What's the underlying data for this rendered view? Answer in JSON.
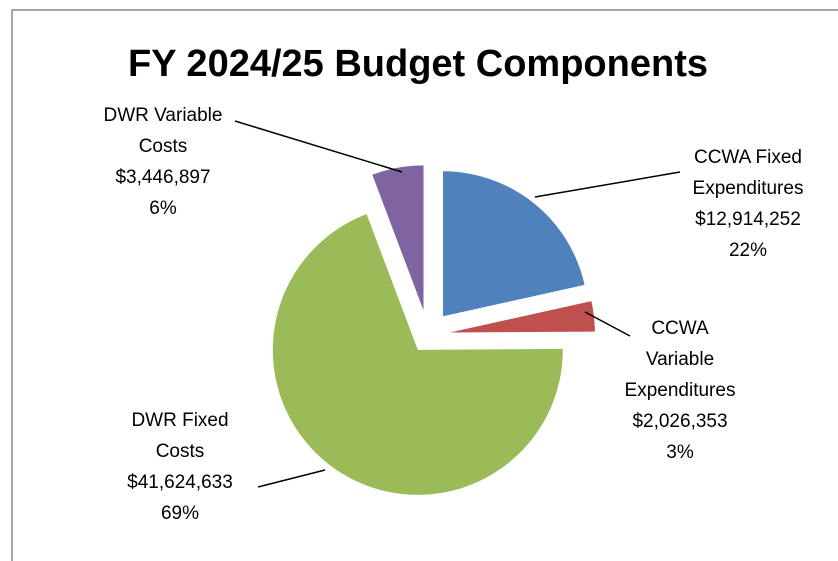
{
  "chart_data": {
    "type": "pie",
    "title": "FY 2024/25 Budget Components",
    "categories": [
      [
        "CCWA Fixed",
        "Expenditures"
      ],
      [
        "CCWA",
        "Variable",
        "Expenditures"
      ],
      [
        "DWR Fixed",
        "Costs"
      ],
      [
        "DWR Variable",
        "Costs"
      ]
    ],
    "values": [
      12914252,
      2026353,
      41624633,
      3446897
    ],
    "value_labels": [
      "$12,914,252",
      "$2,026,353",
      "$41,624,633",
      "$3,446,897"
    ],
    "percent_labels": [
      "22%",
      "3%",
      "69%",
      "6%"
    ],
    "colors": [
      "#4f81bd",
      "#c0504d",
      "#9bbb59",
      "#8064a2"
    ]
  }
}
